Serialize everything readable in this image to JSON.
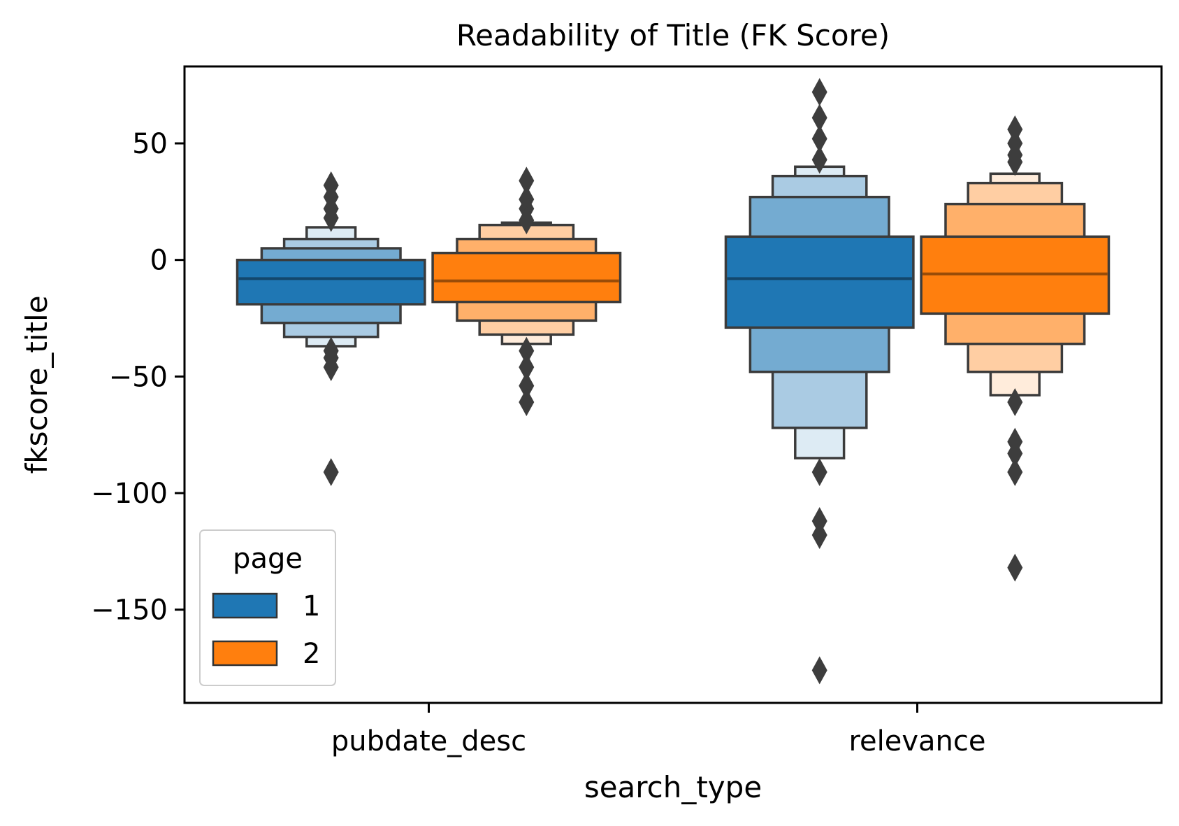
{
  "chart_data": {
    "type": "boxenplot",
    "title": "Readability of Title (FK Score)",
    "xlabel": "search_type",
    "ylabel": "fkscore_title",
    "categories": [
      "pubdate_desc",
      "relevance"
    ],
    "ylim": [
      -190,
      83
    ],
    "yticks": [
      50,
      0,
      -50,
      -100,
      -150
    ],
    "ytick_labels": [
      "50",
      "0",
      "−50",
      "−100",
      "−150"
    ],
    "legend": {
      "title": "page",
      "placement": "lower-left"
    },
    "series": [
      {
        "name": "1",
        "color": "#1f77b4",
        "groups": [
          {
            "category": "pubdate_desc",
            "median": -8,
            "boxes": [
              {
                "low": -19,
                "high": 0
              },
              {
                "low": -27,
                "high": 5
              },
              {
                "low": -33,
                "high": 9
              },
              {
                "low": -37,
                "high": 14
              }
            ],
            "outliers": [
              32,
              27,
              22,
              18,
              -39,
              -42,
              -46,
              -91
            ]
          },
          {
            "category": "relevance",
            "median": -8,
            "boxes": [
              {
                "low": -29,
                "high": 10
              },
              {
                "low": -48,
                "high": 27
              },
              {
                "low": -72,
                "high": 36
              },
              {
                "low": -85,
                "high": 40
              }
            ],
            "outliers": [
              72,
              61,
              52,
              43,
              -91,
              -112,
              -118,
              -176
            ]
          }
        ]
      },
      {
        "name": "2",
        "color": "#ff7f0e",
        "groups": [
          {
            "category": "pubdate_desc",
            "median": -9,
            "boxes": [
              {
                "low": -18,
                "high": 3
              },
              {
                "low": -26,
                "high": 9
              },
              {
                "low": -32,
                "high": 15
              },
              {
                "low": -36,
                "high": 16
              }
            ],
            "outliers": [
              34,
              26,
              22,
              17,
              -39,
              -46,
              -54,
              -61
            ],
            "extra_boxes": []
          },
          {
            "category": "relevance",
            "median": -6,
            "boxes": [
              {
                "low": -23,
                "high": 10
              },
              {
                "low": -36,
                "high": 24
              },
              {
                "low": -48,
                "high": 33
              },
              {
                "low": -58,
                "high": 37
              }
            ],
            "outliers": [
              56,
              50,
              45,
              42,
              -61,
              -78,
              -83,
              -91,
              -132
            ]
          }
        ]
      }
    ]
  }
}
